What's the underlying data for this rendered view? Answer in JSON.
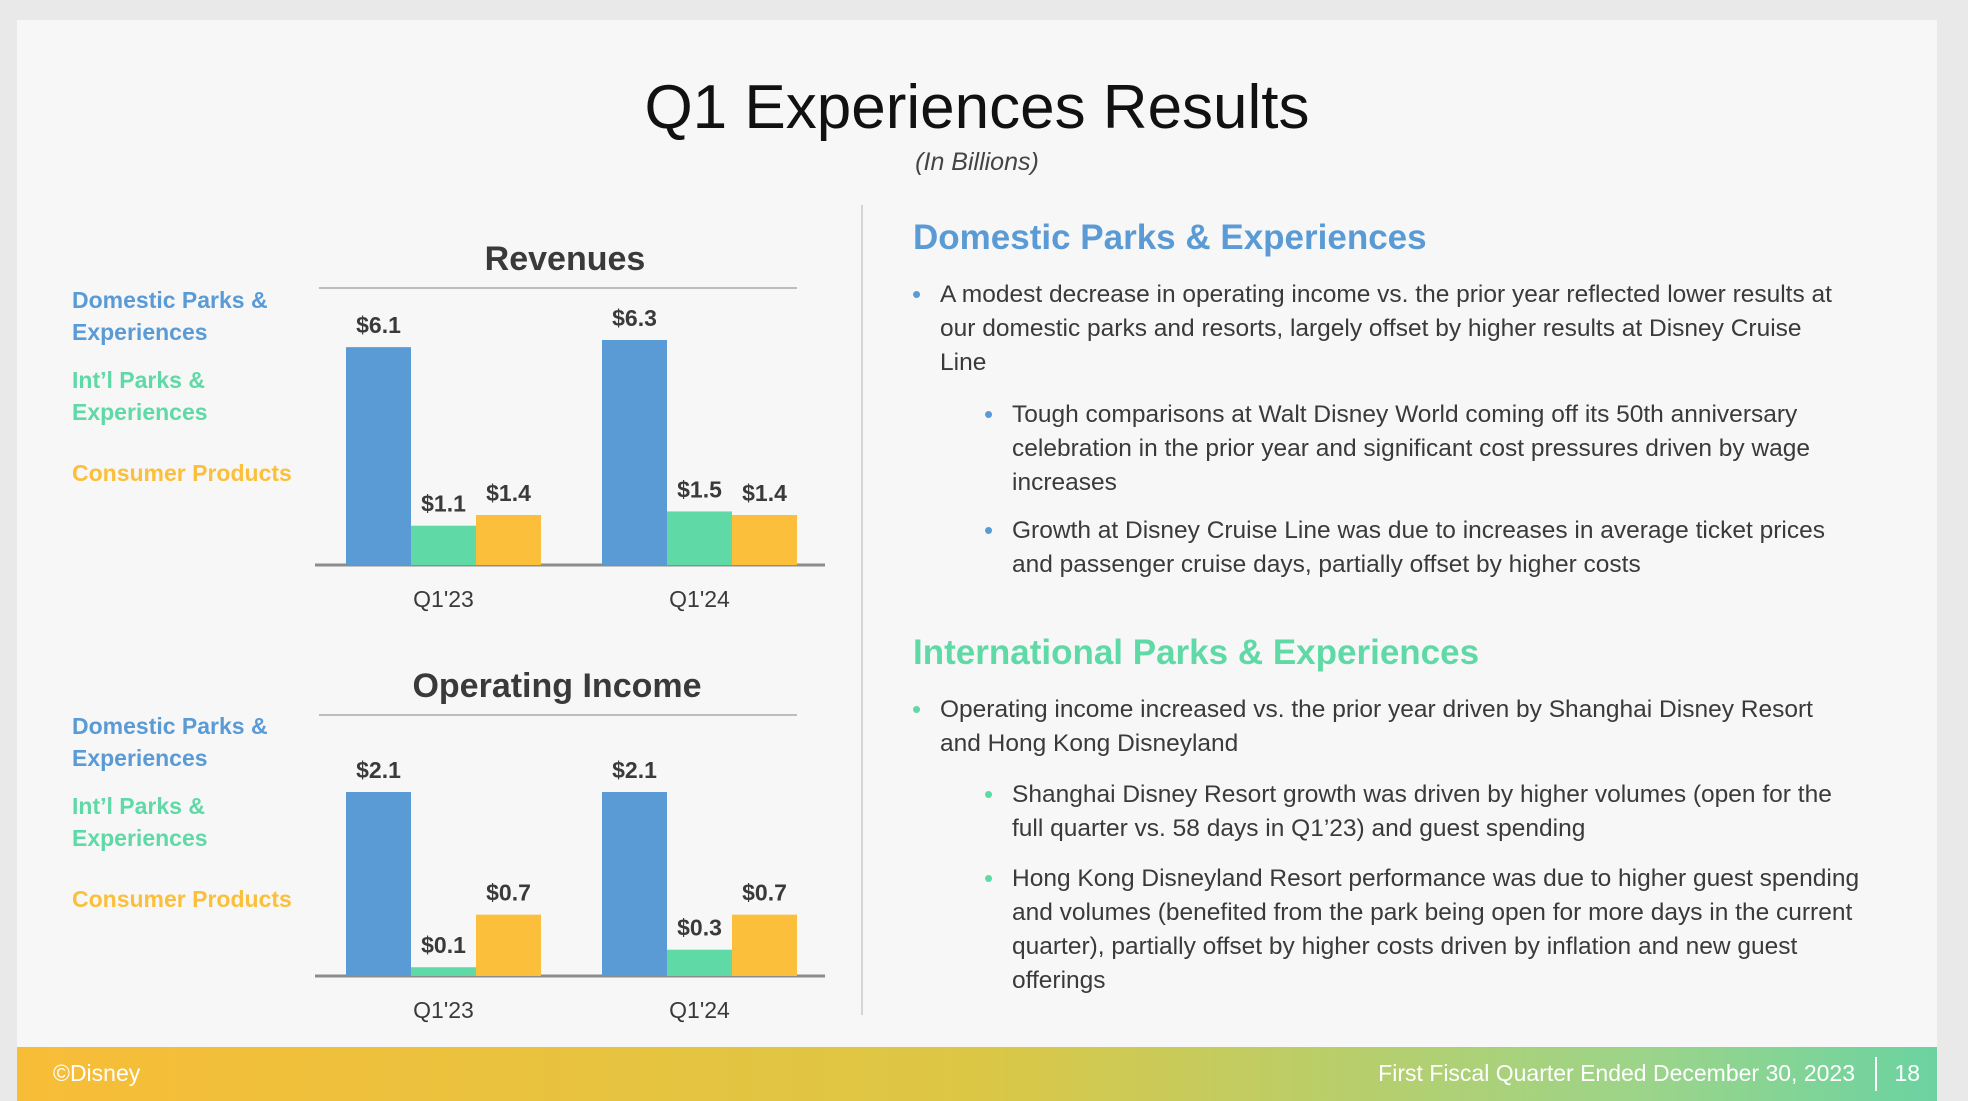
{
  "slide": {
    "title": "Q1 Experiences Results",
    "subtitle": "(In Billions)"
  },
  "colors": {
    "domestic": "#5b9bd5",
    "intl": "#5fd9a5",
    "consumer": "#fbbf3c",
    "axis": "#8c8c8c",
    "text": "#3a3a3a"
  },
  "legend": {
    "domestic": "Domestic Parks & Experiences",
    "intl": "Int’l Parks & Experiences",
    "consumer": "Consumer Products"
  },
  "chart_data": [
    {
      "type": "bar",
      "title": "Revenues",
      "categories": [
        "Q1'23",
        "Q1'24"
      ],
      "series": [
        {
          "name": "Domestic Parks & Experiences",
          "values": [
            6.1,
            6.3
          ],
          "labels": [
            "$6.1",
            "$6.3"
          ]
        },
        {
          "name": "Int’l Parks & Experiences",
          "values": [
            1.1,
            1.5
          ],
          "labels": [
            "$1.1",
            "$1.5"
          ]
        },
        {
          "name": "Consumer Products",
          "values": [
            1.4,
            1.4
          ],
          "labels": [
            "$1.4",
            "$1.4"
          ]
        }
      ],
      "ylim": [
        0,
        6.3
      ],
      "grid": false
    },
    {
      "type": "bar",
      "title": "Operating Income",
      "categories": [
        "Q1'23",
        "Q1'24"
      ],
      "series": [
        {
          "name": "Domestic Parks & Experiences",
          "values": [
            2.1,
            2.1
          ],
          "labels": [
            "$2.1",
            "$2.1"
          ]
        },
        {
          "name": "Int’l Parks & Experiences",
          "values": [
            0.1,
            0.3
          ],
          "labels": [
            "$0.1",
            "$0.3"
          ]
        },
        {
          "name": "Consumer Products",
          "values": [
            0.7,
            0.7
          ],
          "labels": [
            "$0.7",
            "$0.7"
          ]
        }
      ],
      "ylim": [
        0,
        2.1
      ],
      "grid": false
    }
  ],
  "domestic_section": {
    "heading": "Domestic Parks & Experiences",
    "bullet1": "A modest decrease in operating income vs. the prior year reflected lower results at our domestic parks and resorts, largely offset by higher results at Disney Cruise Line",
    "sub1": "Tough comparisons at Walt Disney World coming off its 50th anniversary celebration in the prior year and significant cost pressures driven by wage increases",
    "sub2": "Growth at Disney Cruise Line was due to increases in average ticket prices and passenger cruise days, partially offset by higher costs"
  },
  "intl_section": {
    "heading": "International Parks & Experiences",
    "bullet1": "Operating income increased vs. the prior year driven by Shanghai Disney Resort and Hong Kong Disneyland",
    "sub1": "Shanghai Disney Resort growth was driven by higher volumes (open for the full quarter vs. 58 days in Q1’23) and guest spending",
    "sub2": "Hong Kong Disneyland Resort performance was due to higher guest spending and volumes (benefited from the park being open for more days in the current quarter), partially offset by higher costs driven by inflation and new guest offerings"
  },
  "footer": {
    "copyright": "©Disney",
    "quarter": "First Fiscal Quarter Ended December 30, 2023",
    "page": "18"
  }
}
